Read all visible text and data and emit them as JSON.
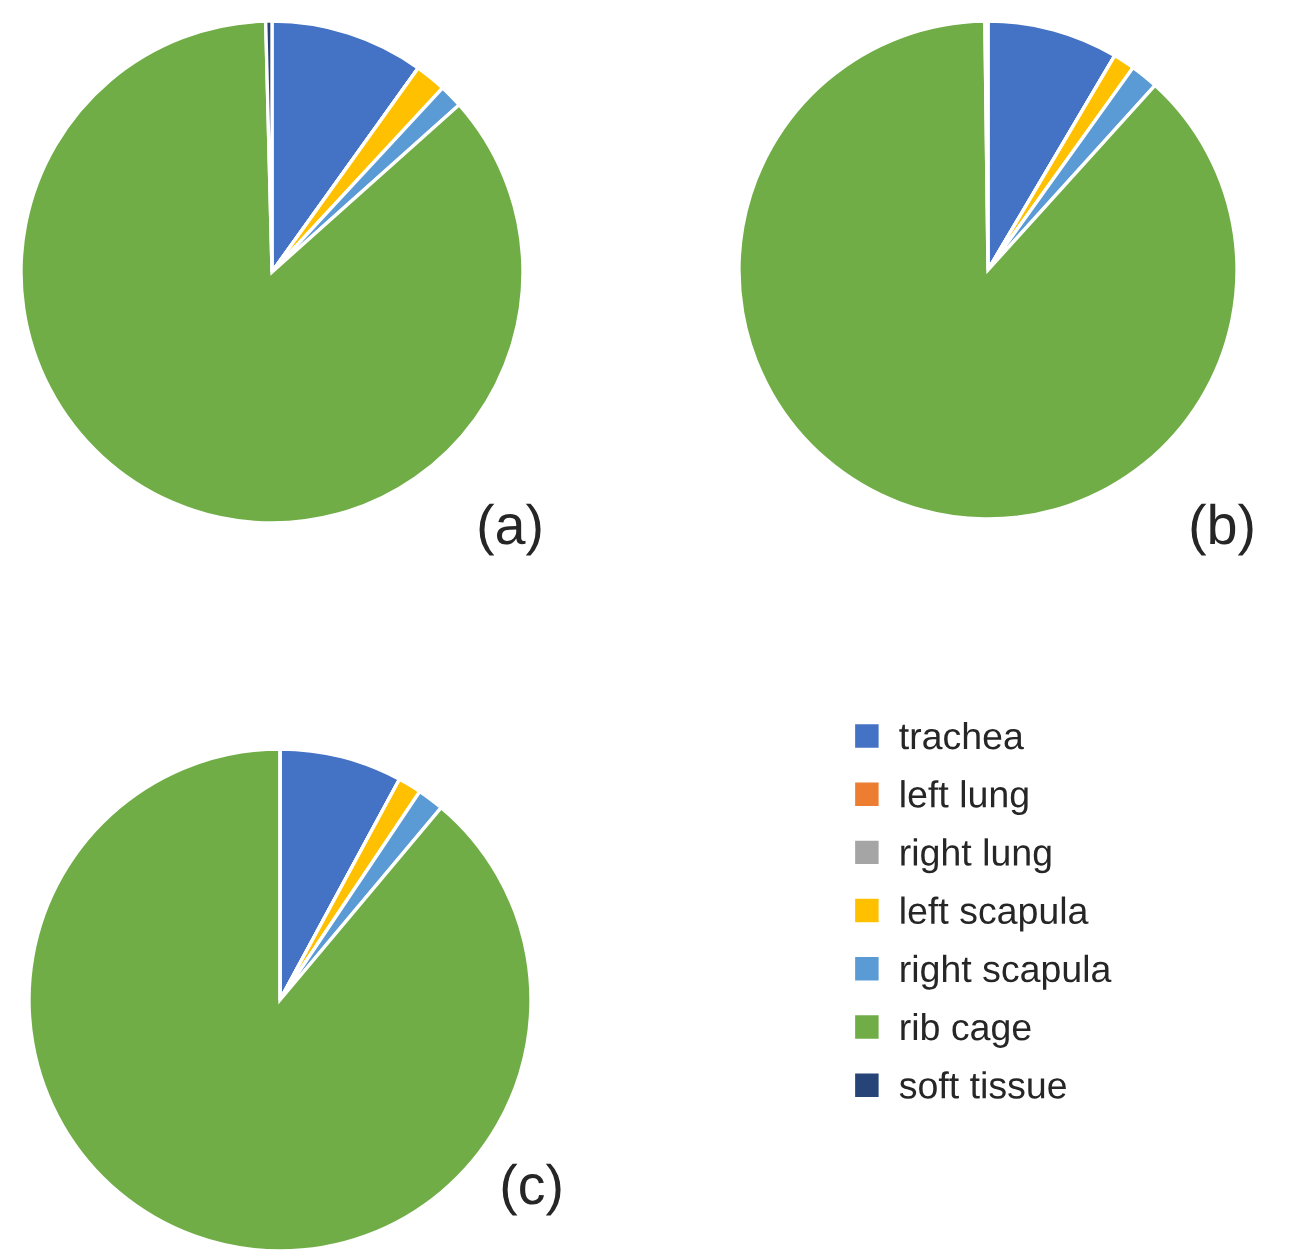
{
  "chart_data": [
    {
      "type": "pie",
      "categories": [
        null,
        null,
        null,
        null,
        null,
        null,
        null
      ],
      "values": [
        9.9,
        0,
        0,
        2.0,
        1.5,
        86.2,
        0.4
      ],
      "colors": [
        "#4472c4",
        "#ed7d31",
        "#a5a5a5",
        "#ffc000",
        "#5b9bd5",
        "#70ad47",
        "#264478"
      ],
      "annotations": [
        "(a)"
      ]
    },
    {
      "type": "pie",
      "categories": [
        null,
        null,
        null,
        null,
        null,
        null,
        null
      ],
      "values": [
        8.5,
        0,
        0,
        1.4,
        1.8,
        88.1,
        0.2
      ],
      "colors": [
        "#4472c4",
        "#ed7d31",
        "#a5a5a5",
        "#ffc000",
        "#5b9bd5",
        "#70ad47",
        "#264478"
      ],
      "annotations": [
        "(b)"
      ]
    },
    {
      "type": "pie",
      "categories": [
        "trachea",
        "left lung",
        "right lung",
        "left scapula",
        "right scapula",
        "rib cage",
        "soft tissue"
      ],
      "values": [
        7.9,
        0,
        0,
        1.5,
        1.7,
        88.9,
        0
      ],
      "colors": [
        "#4472c4",
        "#ed7d31",
        "#a5a5a5",
        "#ffc000",
        "#5b9bd5",
        "#70ad47",
        "#264478"
      ],
      "annotations": [
        "(c)"
      ],
      "legend": "right"
    }
  ]
}
